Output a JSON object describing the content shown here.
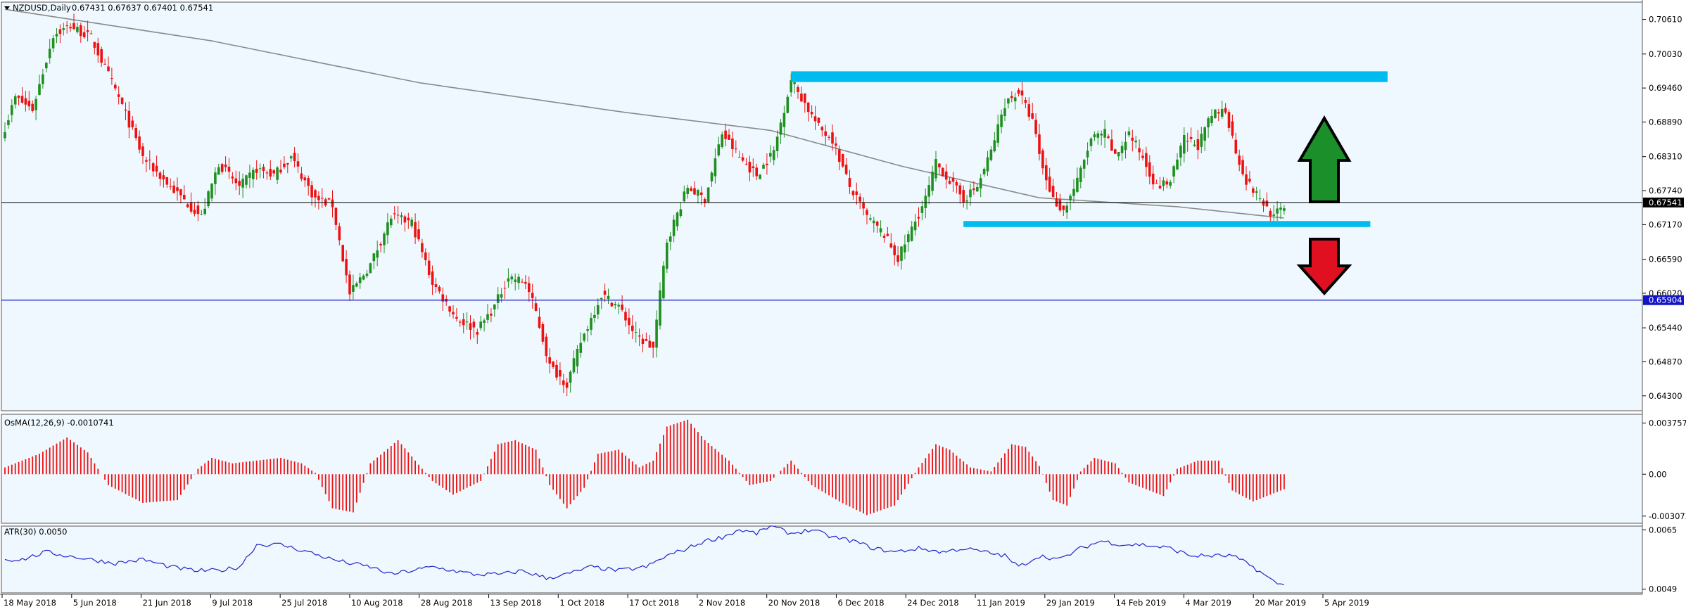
{
  "header": {
    "symbol": "NZDUSD,Daily",
    "ohlc": "0.67431 0.67637 0.67401 0.67541"
  },
  "osma": {
    "title": "OsMA(12,26,9) -0.0010741"
  },
  "atr": {
    "title": "ATR(30) 0.0050"
  },
  "colors": {
    "background": "#eef8fe",
    "bull": "#1f8f1f",
    "bear": "#ee1111",
    "zone": "#00bbee",
    "ma": "#8a8a8a",
    "atr_line": "#2323cc",
    "level_line": "#1515c8",
    "price_line": "#000000",
    "arrow_up": "#1a8f2a",
    "arrow_down": "#e01020"
  },
  "chart_data": [
    {
      "type": "candlestick",
      "title": "NZDUSD,Daily",
      "x_ticks": [
        "18 May 2018",
        "5 Jun 2018",
        "21 Jun 2018",
        "9 Jul 2018",
        "25 Jul 2018",
        "10 Aug 2018",
        "28 Aug 2018",
        "13 Sep 2018",
        "1 Oct 2018",
        "17 Oct 2018",
        "2 Nov 2018",
        "20 Nov 2018",
        "6 Dec 2018",
        "24 Dec 2018",
        "11 Jan 2019",
        "29 Jan 2019",
        "14 Feb 2019",
        "4 Mar 2019",
        "20 Mar 2019",
        "5 Apr 2019"
      ],
      "y_ticks": [
        "0.70610",
        "0.70030",
        "0.69460",
        "0.68890",
        "0.68310",
        "0.67740",
        "0.67170",
        "0.66590",
        "0.66020",
        "0.65440",
        "0.64870",
        "0.64300"
      ],
      "ylim": [
        0.6405,
        0.709
      ],
      "close_anchors": [
        [
          0,
          0.688
        ],
        [
          3,
          0.693
        ],
        [
          8,
          0.691
        ],
        [
          14,
          0.7035
        ],
        [
          19,
          0.705
        ],
        [
          25,
          0.703
        ],
        [
          33,
          0.693
        ],
        [
          40,
          0.683
        ],
        [
          48,
          0.678
        ],
        [
          57,
          0.673
        ],
        [
          62,
          0.682
        ],
        [
          68,
          0.678
        ],
        [
          73,
          0.681
        ],
        [
          78,
          0.68
        ],
        [
          83,
          0.683
        ],
        [
          90,
          0.676
        ],
        [
          95,
          0.675
        ],
        [
          100,
          0.66
        ],
        [
          106,
          0.665
        ],
        [
          112,
          0.673
        ],
        [
          118,
          0.672
        ],
        [
          124,
          0.662
        ],
        [
          131,
          0.656
        ],
        [
          137,
          0.654
        ],
        [
          142,
          0.658
        ],
        [
          146,
          0.663
        ],
        [
          151,
          0.662
        ],
        [
          154,
          0.657
        ],
        [
          158,
          0.648
        ],
        [
          163,
          0.645
        ],
        [
          167,
          0.652
        ],
        [
          173,
          0.66
        ],
        [
          178,
          0.658
        ],
        [
          183,
          0.653
        ],
        [
          188,
          0.651
        ],
        [
          192,
          0.669
        ],
        [
          198,
          0.678
        ],
        [
          203,
          0.676
        ],
        [
          208,
          0.687
        ],
        [
          213,
          0.683
        ],
        [
          218,
          0.68
        ],
        [
          223,
          0.684
        ],
        [
          228,
          0.696
        ],
        [
          232,
          0.692
        ],
        [
          236,
          0.688
        ],
        [
          240,
          0.686
        ],
        [
          245,
          0.678
        ],
        [
          250,
          0.673
        ],
        [
          255,
          0.67
        ],
        [
          259,
          0.666
        ],
        [
          263,
          0.671
        ],
        [
          267,
          0.676
        ],
        [
          270,
          0.682
        ],
        [
          274,
          0.679
        ],
        [
          278,
          0.676
        ],
        [
          282,
          0.678
        ],
        [
          286,
          0.684
        ],
        [
          290,
          0.692
        ],
        [
          294,
          0.694
        ],
        [
          298,
          0.689
        ],
        [
          301,
          0.681
        ],
        [
          304,
          0.676
        ],
        [
          307,
          0.674
        ],
        [
          311,
          0.679
        ],
        [
          315,
          0.686
        ],
        [
          319,
          0.687
        ],
        [
          322,
          0.683
        ],
        [
          326,
          0.687
        ],
        [
          330,
          0.683
        ],
        [
          334,
          0.678
        ],
        [
          338,
          0.679
        ],
        [
          342,
          0.686
        ],
        [
          346,
          0.685
        ],
        [
          350,
          0.69
        ],
        [
          354,
          0.691
        ],
        [
          357,
          0.684
        ],
        [
          360,
          0.679
        ],
        [
          364,
          0.676
        ],
        [
          368,
          0.673
        ],
        [
          371,
          0.675
        ]
      ],
      "moving_average": [
        [
          0,
          0.7078
        ],
        [
          60,
          0.7025
        ],
        [
          120,
          0.6955
        ],
        [
          180,
          0.6905
        ],
        [
          222,
          0.6875
        ],
        [
          260,
          0.6815
        ],
        [
          300,
          0.6762
        ],
        [
          340,
          0.6747
        ],
        [
          371,
          0.6728
        ]
      ],
      "levels": {
        "current_price": "0.67541",
        "horizontal_level": "0.65904"
      },
      "zones": [
        {
          "from_bar": 228,
          "to_bar": 401,
          "top": 0.6974,
          "bottom": 0.6956
        },
        {
          "from_bar": 278,
          "to_bar": 396,
          "top": 0.6723,
          "bottom": 0.6713
        }
      ],
      "arrows": [
        {
          "direction": "up",
          "color": "green"
        },
        {
          "direction": "down",
          "color": "red"
        }
      ]
    },
    {
      "type": "bar",
      "title": "OsMA(12,26,9) -0.0010741",
      "y_ticks": [
        "0.0037578",
        "0.00",
        "-0.0030737"
      ],
      "ylim": [
        -0.0036,
        0.0044
      ],
      "anchors": [
        [
          0,
          0.0005
        ],
        [
          10,
          0.0015
        ],
        [
          18,
          0.0027
        ],
        [
          24,
          0.0016
        ],
        [
          30,
          -0.0008
        ],
        [
          40,
          -0.0021
        ],
        [
          50,
          -0.0019
        ],
        [
          56,
          0.0004
        ],
        [
          60,
          0.0012
        ],
        [
          66,
          0.0008
        ],
        [
          80,
          0.0012
        ],
        [
          86,
          0.0008
        ],
        [
          90,
          0.0001
        ],
        [
          95,
          -0.0025
        ],
        [
          101,
          -0.0028
        ],
        [
          106,
          0.0008
        ],
        [
          114,
          0.0025
        ],
        [
          120,
          0.0007
        ],
        [
          124,
          -0.0005
        ],
        [
          130,
          -0.0015
        ],
        [
          138,
          -0.0005
        ],
        [
          143,
          0.0022
        ],
        [
          148,
          0.0025
        ],
        [
          154,
          0.0018
        ],
        [
          158,
          -0.0008
        ],
        [
          163,
          -0.0025
        ],
        [
          168,
          -0.001
        ],
        [
          172,
          0.0015
        ],
        [
          178,
          0.0018
        ],
        [
          184,
          0.0005
        ],
        [
          188,
          0.001
        ],
        [
          192,
          0.0035
        ],
        [
          198,
          0.004
        ],
        [
          203,
          0.0025
        ],
        [
          210,
          0.001
        ],
        [
          216,
          -0.0008
        ],
        [
          222,
          -0.0005
        ],
        [
          228,
          0.001
        ],
        [
          234,
          -0.0008
        ],
        [
          242,
          -0.002
        ],
        [
          250,
          -0.003
        ],
        [
          258,
          -0.0023
        ],
        [
          265,
          0.0005
        ],
        [
          270,
          0.0022
        ],
        [
          274,
          0.0018
        ],
        [
          280,
          0.0005
        ],
        [
          286,
          0.0002
        ],
        [
          292,
          0.0022
        ],
        [
          296,
          0.002
        ],
        [
          300,
          0.0006
        ],
        [
          304,
          -0.0019
        ],
        [
          308,
          -0.0023
        ],
        [
          312,
          0.0002
        ],
        [
          316,
          0.0012
        ],
        [
          322,
          0.0008
        ],
        [
          326,
          -0.0006
        ],
        [
          332,
          -0.0012
        ],
        [
          336,
          -0.0016
        ],
        [
          340,
          0.0004
        ],
        [
          346,
          0.001
        ],
        [
          352,
          0.001
        ],
        [
          356,
          -0.0012
        ],
        [
          362,
          -0.002
        ],
        [
          371,
          -0.0011
        ]
      ]
    },
    {
      "type": "line",
      "title": "ATR(30) 0.0050",
      "y_ticks": [
        "0.0065",
        "0.0049"
      ],
      "ylim": [
        0.0048,
        0.0066
      ],
      "anchors": [
        [
          0,
          0.0057
        ],
        [
          5,
          0.0057
        ],
        [
          12,
          0.0059
        ],
        [
          18,
          0.0058
        ],
        [
          25,
          0.0057
        ],
        [
          32,
          0.0056
        ],
        [
          40,
          0.0057
        ],
        [
          48,
          0.0055
        ],
        [
          55,
          0.0054
        ],
        [
          62,
          0.0054
        ],
        [
          68,
          0.0055
        ],
        [
          73,
          0.0061
        ],
        [
          80,
          0.0061
        ],
        [
          88,
          0.0059
        ],
        [
          95,
          0.0057
        ],
        [
          100,
          0.0056
        ],
        [
          106,
          0.0055
        ],
        [
          112,
          0.0053
        ],
        [
          118,
          0.0054
        ],
        [
          124,
          0.0055
        ],
        [
          130,
          0.0054
        ],
        [
          136,
          0.0053
        ],
        [
          144,
          0.0053
        ],
        [
          150,
          0.0054
        ],
        [
          157,
          0.0052
        ],
        [
          163,
          0.0053
        ],
        [
          170,
          0.0055
        ],
        [
          178,
          0.0054
        ],
        [
          186,
          0.0055
        ],
        [
          192,
          0.0058
        ],
        [
          198,
          0.006
        ],
        [
          203,
          0.0062
        ],
        [
          208,
          0.0063
        ],
        [
          213,
          0.0065
        ],
        [
          218,
          0.0064
        ],
        [
          222,
          0.0066
        ],
        [
          228,
          0.0064
        ],
        [
          234,
          0.0065
        ],
        [
          240,
          0.0063
        ],
        [
          246,
          0.0062
        ],
        [
          252,
          0.006
        ],
        [
          258,
          0.0059
        ],
        [
          265,
          0.006
        ],
        [
          272,
          0.0059
        ],
        [
          278,
          0.006
        ],
        [
          284,
          0.0059
        ],
        [
          290,
          0.0058
        ],
        [
          294,
          0.0055
        ],
        [
          300,
          0.0058
        ],
        [
          306,
          0.0057
        ],
        [
          312,
          0.006
        ],
        [
          318,
          0.0062
        ],
        [
          324,
          0.0061
        ],
        [
          330,
          0.0061
        ],
        [
          338,
          0.006
        ],
        [
          344,
          0.0058
        ],
        [
          350,
          0.0058
        ],
        [
          356,
          0.0058
        ],
        [
          362,
          0.0055
        ],
        [
          368,
          0.0051
        ],
        [
          371,
          0.005
        ]
      ]
    }
  ]
}
